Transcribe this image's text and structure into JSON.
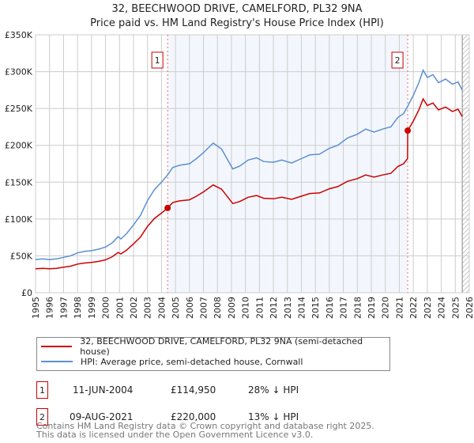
{
  "chart_data": {
    "type": "line",
    "title": "32, BEECHWOOD DRIVE, CAMELFORD, PL32 9NA",
    "subtitle": "Price paid vs. HM Land Registry's House Price Index (HPI)",
    "xlim": [
      1995,
      2026
    ],
    "ylim": [
      0,
      350000
    ],
    "x_ticks": [
      "1995",
      "1996",
      "1997",
      "1998",
      "1999",
      "2000",
      "2001",
      "2002",
      "2003",
      "2004",
      "2005",
      "2006",
      "2007",
      "2008",
      "2009",
      "2010",
      "2011",
      "2012",
      "2013",
      "2014",
      "2015",
      "2016",
      "2017",
      "2018",
      "2019",
      "2020",
      "2021",
      "2022",
      "2023",
      "2024",
      "2025",
      "2026"
    ],
    "y_ticks": [
      {
        "v": 0,
        "label": "£0"
      },
      {
        "v": 50000,
        "label": "£50K"
      },
      {
        "v": 100000,
        "label": "£100K"
      },
      {
        "v": 150000,
        "label": "£150K"
      },
      {
        "v": 200000,
        "label": "£200K"
      },
      {
        "v": 250000,
        "label": "£250K"
      },
      {
        "v": 300000,
        "label": "£300K"
      },
      {
        "v": 350000,
        "label": "£350K"
      }
    ],
    "grid": true,
    "shaded_range": [
      2004.44,
      2021.6
    ],
    "hatched_from": 2025.5,
    "series": [
      {
        "name": "32, BEECHWOOD DRIVE, CAMELFORD, PL32 9NA (semi-detached house)",
        "color": "#cc0000",
        "x": [
          1995,
          1995.5,
          1996,
          1996.5,
          1997,
          1997.5,
          1998,
          1998.5,
          1999,
          1999.5,
          2000,
          2000.5,
          2000.9,
          2001.1,
          2001.5,
          2002,
          2002.5,
          2003,
          2003.5,
          2004,
          2004.44,
          2004.8,
          2005.3,
          2006,
          2006.5,
          2007,
          2007.7,
          2008.3,
          2008.8,
          2009.1,
          2009.6,
          2010.2,
          2010.8,
          2011.3,
          2012,
          2012.6,
          2013.3,
          2014,
          2014.6,
          2015.3,
          2016,
          2016.6,
          2017.3,
          2018,
          2018.6,
          2019.2,
          2019.8,
          2020.4,
          2020.9,
          2021.3,
          2021.59,
          2021.6,
          2022,
          2022.4,
          2022.7,
          2023,
          2023.4,
          2023.8,
          2024.3,
          2024.8,
          2025.2,
          2025.5
        ],
        "y": [
          32.4,
          33.1,
          32.4,
          33.1,
          34.6,
          36,
          38.9,
          40.3,
          41,
          42.5,
          44.6,
          49,
          54.7,
          52.6,
          57.6,
          66.2,
          75.6,
          90,
          100.8,
          108,
          114.95,
          122.4,
          124.6,
          126,
          131,
          136.8,
          146.2,
          140.4,
          128.2,
          121,
          123.8,
          129.6,
          131.8,
          128.2,
          127.4,
          129.6,
          126.7,
          131,
          134.6,
          135.4,
          141.1,
          144,
          151.2,
          154.8,
          159.8,
          157,
          159.8,
          162,
          171.4,
          175,
          182,
          220,
          233,
          248,
          263,
          254,
          257.5,
          248,
          252,
          246,
          249,
          239
        ]
      },
      {
        "name": "HPI: Average price, semi-detached house, Cornwall",
        "color": "#5b8fd4",
        "x": [
          1995,
          1995.5,
          1996,
          1996.5,
          1997,
          1997.5,
          1998,
          1998.5,
          1999,
          1999.5,
          2000,
          2000.5,
          2000.9,
          2001.1,
          2001.5,
          2002,
          2002.5,
          2003,
          2003.5,
          2004,
          2004.44,
          2004.8,
          2005.3,
          2006,
          2006.5,
          2007,
          2007.7,
          2008.3,
          2008.8,
          2009.1,
          2009.6,
          2010.2,
          2010.8,
          2011.3,
          2012,
          2012.6,
          2013.3,
          2014,
          2014.6,
          2015.3,
          2016,
          2016.6,
          2017.3,
          2018,
          2018.6,
          2019.2,
          2019.8,
          2020.4,
          2020.9,
          2021.3,
          2021.6,
          2022,
          2022.4,
          2022.7,
          2023,
          2023.4,
          2023.8,
          2024.3,
          2024.8,
          2025.2,
          2025.5
        ],
        "y": [
          45,
          46,
          45,
          46,
          48,
          50,
          54,
          56,
          57,
          59,
          62,
          68,
          76,
          73,
          80,
          92,
          105,
          125,
          140,
          150,
          160,
          170,
          173,
          175,
          182,
          190,
          203,
          195,
          178,
          168,
          172,
          180,
          183,
          178,
          177,
          180,
          176,
          182,
          187,
          188,
          196,
          200,
          210,
          215,
          222,
          218,
          222,
          225,
          238,
          243,
          253,
          268,
          285,
          302,
          292,
          296,
          285,
          290,
          283,
          286,
          275
        ]
      }
    ],
    "y_unit": "thousand GBP",
    "sales": [
      {
        "label": "1",
        "x": 2004.44,
        "y": 114.95
      },
      {
        "label": "2",
        "x": 2021.6,
        "y": 220
      }
    ]
  },
  "legend": {
    "red": "32, BEECHWOOD DRIVE, CAMELFORD, PL32 9NA (semi-detached house)",
    "blue": "HPI: Average price, semi-detached house, Cornwall"
  },
  "transactions": [
    {
      "num": "1",
      "date": "11-JUN-2004",
      "price": "£114,950",
      "hpi": "28% ↓ HPI"
    },
    {
      "num": "2",
      "date": "09-AUG-2021",
      "price": "£220,000",
      "hpi": "13% ↓ HPI"
    }
  ],
  "footer": {
    "line1": "Contains HM Land Registry data © Crown copyright and database right 2025.",
    "line2": "This data is licensed under the Open Government Licence v3.0."
  }
}
